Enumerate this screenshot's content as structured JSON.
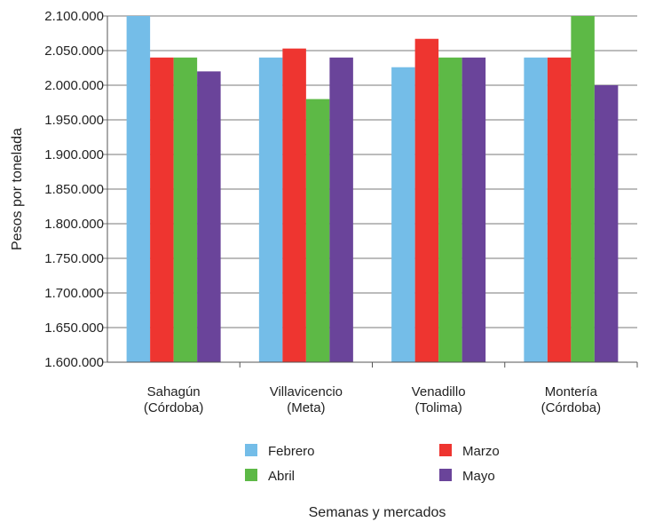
{
  "chart_data": {
    "type": "bar",
    "xlabel": "Semanas y mercados",
    "ylabel": "Pesos por tonelada",
    "ylim": [
      1600000,
      2100000
    ],
    "y_ticks": [
      {
        "value": 1600000,
        "label": "1.600.000"
      },
      {
        "value": 1650000,
        "label": "1.650.000"
      },
      {
        "value": 1700000,
        "label": "1.700.000"
      },
      {
        "value": 1750000,
        "label": "1.750.000"
      },
      {
        "value": 1800000,
        "label": "1.800.000"
      },
      {
        "value": 1850000,
        "label": "1.850.000"
      },
      {
        "value": 1900000,
        "label": "1.900.000"
      },
      {
        "value": 1950000,
        "label": "1.950.000"
      },
      {
        "value": 2000000,
        "label": "2.000.000"
      },
      {
        "value": 2050000,
        "label": "2.050.000"
      },
      {
        "value": 2100000,
        "label": "2.100.000"
      }
    ],
    "categories": [
      [
        "Sahagún",
        "(Córdoba)"
      ],
      [
        "Villavicencio",
        "(Meta)"
      ],
      [
        "Venadillo",
        "(Tolima)"
      ],
      [
        "Montería",
        "(Córdoba)"
      ]
    ],
    "series": [
      {
        "name": "Febrero",
        "color": "#74BDE8",
        "values": [
          2100000,
          2040000,
          2026000,
          2040000
        ]
      },
      {
        "name": "Marzo",
        "color": "#EE3530",
        "values": [
          2040000,
          2053000,
          2067000,
          2040000
        ]
      },
      {
        "name": "Abril",
        "color": "#5DB946",
        "values": [
          2040000,
          1980000,
          2040000,
          2100000
        ]
      },
      {
        "name": "Mayo",
        "color": "#6A449A",
        "values": [
          2020000,
          2040000,
          2040000,
          2000000
        ]
      }
    ],
    "grid": "horizontal",
    "legend_position": "bottom"
  }
}
